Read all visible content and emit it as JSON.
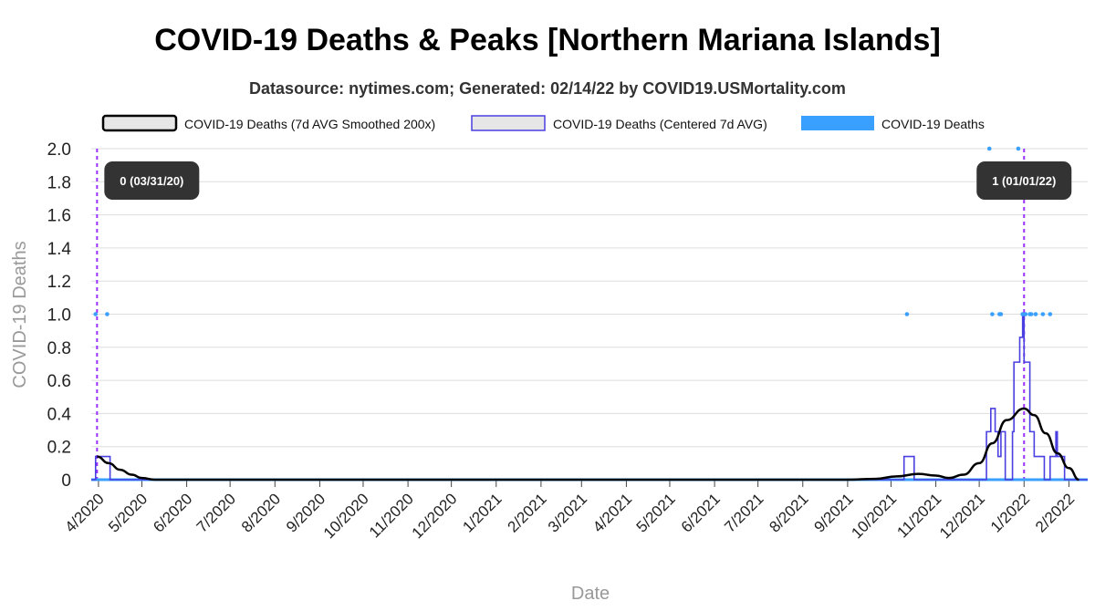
{
  "colors": {
    "smoothed": "#000000",
    "centered": "#4a3fe0",
    "deaths": "#3aa0ff",
    "peak_line": "#9b30ff",
    "grid": "#dddddd",
    "annotation_bg": "#333333"
  },
  "chart_data": {
    "type": "line",
    "title": "COVID-19 Deaths & Peaks [Northern Mariana Islands]",
    "subtitle": "Datasource: nytimes.com; Generated: 02/14/22 by COVID19.USMortality.com",
    "xlabel": "Date",
    "ylabel": "COVID-19 Deaths",
    "ylim": [
      0,
      2.0
    ],
    "yticks": [
      "0",
      "0.2",
      "0.4",
      "0.6",
      "0.8",
      "1.0",
      "1.2",
      "1.4",
      "1.6",
      "1.8",
      "2.0"
    ],
    "x_range": [
      "2020-03-27",
      "2022-02-14"
    ],
    "xticks": [
      {
        "date": "2020-04-01",
        "label": "4/2020"
      },
      {
        "date": "2020-05-01",
        "label": "5/2020"
      },
      {
        "date": "2020-06-01",
        "label": "6/2020"
      },
      {
        "date": "2020-07-01",
        "label": "7/2020"
      },
      {
        "date": "2020-08-01",
        "label": "8/2020"
      },
      {
        "date": "2020-09-01",
        "label": "9/2020"
      },
      {
        "date": "2020-10-01",
        "label": "10/2020"
      },
      {
        "date": "2020-11-01",
        "label": "11/2020"
      },
      {
        "date": "2020-12-01",
        "label": "12/2020"
      },
      {
        "date": "2021-01-01",
        "label": "1/2021"
      },
      {
        "date": "2021-02-01",
        "label": "2/2021"
      },
      {
        "date": "2021-03-01",
        "label": "3/2021"
      },
      {
        "date": "2021-04-01",
        "label": "4/2021"
      },
      {
        "date": "2021-05-01",
        "label": "5/2021"
      },
      {
        "date": "2021-06-01",
        "label": "6/2021"
      },
      {
        "date": "2021-07-01",
        "label": "7/2021"
      },
      {
        "date": "2021-08-01",
        "label": "8/2021"
      },
      {
        "date": "2021-09-01",
        "label": "9/2021"
      },
      {
        "date": "2021-10-01",
        "label": "10/2021"
      },
      {
        "date": "2021-11-01",
        "label": "11/2021"
      },
      {
        "date": "2021-12-01",
        "label": "12/2021"
      },
      {
        "date": "2022-01-01",
        "label": "1/2022"
      },
      {
        "date": "2022-02-01",
        "label": "2/2022"
      }
    ],
    "grid": true,
    "legend_position": "top",
    "series": [
      {
        "name": "COVID-19 Deaths (7d AVG Smoothed 200x)",
        "style": "line",
        "points": [
          [
            "2020-03-31",
            0.14
          ],
          [
            "2020-04-08",
            0.1
          ],
          [
            "2020-04-16",
            0.06
          ],
          [
            "2020-04-24",
            0.03
          ],
          [
            "2020-05-01",
            0.01
          ],
          [
            "2020-05-10",
            0.0
          ],
          [
            "2021-09-01",
            0.0
          ],
          [
            "2021-09-20",
            0.005
          ],
          [
            "2021-10-05",
            0.02
          ],
          [
            "2021-10-20",
            0.035
          ],
          [
            "2021-11-01",
            0.025
          ],
          [
            "2021-11-10",
            0.01
          ],
          [
            "2021-11-20",
            0.03
          ],
          [
            "2021-12-01",
            0.1
          ],
          [
            "2021-12-10",
            0.22
          ],
          [
            "2021-12-20",
            0.36
          ],
          [
            "2022-01-01",
            0.43
          ],
          [
            "2022-01-08",
            0.39
          ],
          [
            "2022-01-16",
            0.28
          ],
          [
            "2022-01-24",
            0.16
          ],
          [
            "2022-02-01",
            0.07
          ],
          [
            "2022-02-08",
            0.0
          ]
        ]
      },
      {
        "name": "COVID-19 Deaths (Centered 7d AVG)",
        "style": "step",
        "points": [
          [
            "2020-03-27",
            0.0
          ],
          [
            "2020-03-30",
            0.14
          ],
          [
            "2020-04-08",
            0.14
          ],
          [
            "2020-04-09",
            0.0
          ],
          [
            "2021-10-09",
            0.0
          ],
          [
            "2021-10-10",
            0.14
          ],
          [
            "2021-10-16",
            0.14
          ],
          [
            "2021-10-17",
            0.0
          ],
          [
            "2021-12-05",
            0.0
          ],
          [
            "2021-12-06",
            0.29
          ],
          [
            "2021-12-09",
            0.43
          ],
          [
            "2021-12-12",
            0.29
          ],
          [
            "2021-12-14",
            0.14
          ],
          [
            "2021-12-16",
            0.29
          ],
          [
            "2021-12-19",
            0.0
          ],
          [
            "2021-12-24",
            0.29
          ],
          [
            "2021-12-25",
            0.71
          ],
          [
            "2021-12-29",
            0.86
          ],
          [
            "2021-12-31",
            1.0
          ],
          [
            "2022-01-01",
            0.71
          ],
          [
            "2022-01-05",
            0.29
          ],
          [
            "2022-01-08",
            0.14
          ],
          [
            "2022-01-12",
            0.14
          ],
          [
            "2022-01-15",
            0.0
          ],
          [
            "2022-01-19",
            0.14
          ],
          [
            "2022-01-23",
            0.29
          ],
          [
            "2022-01-24",
            0.14
          ],
          [
            "2022-01-29",
            0.0
          ],
          [
            "2022-02-14",
            0.0
          ]
        ]
      },
      {
        "name": "COVID-19 Deaths",
        "style": "points",
        "points": [
          [
            "2020-03-30",
            1
          ],
          [
            "2020-04-07",
            1
          ],
          [
            "2021-10-12",
            1
          ],
          [
            "2021-12-10",
            1
          ],
          [
            "2021-12-15",
            1
          ],
          [
            "2021-12-16",
            1
          ],
          [
            "2021-12-31",
            1
          ],
          [
            "2022-01-02",
            1
          ],
          [
            "2022-01-05",
            1
          ],
          [
            "2022-01-06",
            1
          ],
          [
            "2022-01-09",
            1
          ],
          [
            "2022-01-14",
            1
          ],
          [
            "2022-01-19",
            1
          ],
          [
            "2021-12-08",
            2
          ],
          [
            "2021-12-28",
            2
          ]
        ]
      }
    ],
    "annotations": [
      {
        "date": "2020-03-31",
        "text": "0 (03/31/20)"
      },
      {
        "date": "2022-01-01",
        "text": "1 (01/01/22)"
      }
    ]
  }
}
